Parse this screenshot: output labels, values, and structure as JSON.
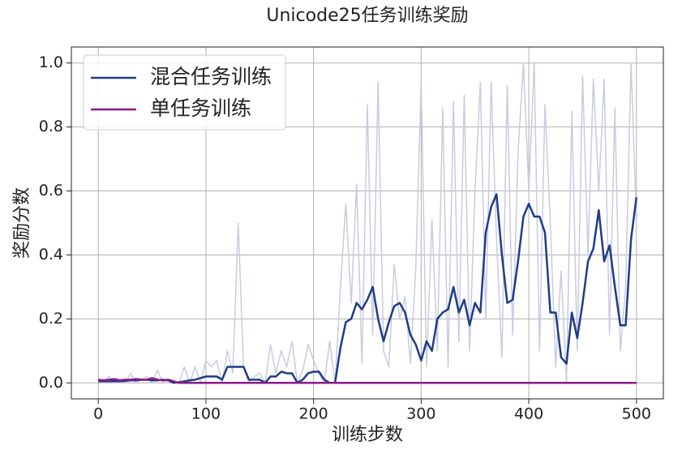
{
  "chart_data": {
    "type": "line",
    "title": "Unicode25任务训练奖励",
    "x_label": "训练步数",
    "y_label": "奖励分数",
    "xlim": [
      -25,
      525
    ],
    "xticks": [
      0,
      100,
      200,
      300,
      400,
      500
    ],
    "ylim": [
      -0.05,
      1.05
    ],
    "yticks": [
      {
        "value": 0,
        "label": "0.0"
      },
      0.2,
      0.4,
      0.6,
      0.8,
      {
        "value": 1,
        "label": "1.0"
      }
    ],
    "grid": true,
    "legend": "upper left",
    "x": [
      0,
      5,
      10,
      15,
      20,
      25,
      30,
      35,
      40,
      45,
      50,
      55,
      60,
      65,
      70,
      75,
      80,
      85,
      90,
      95,
      100,
      105,
      110,
      115,
      120,
      125,
      130,
      135,
      140,
      145,
      150,
      155,
      160,
      165,
      170,
      175,
      180,
      185,
      190,
      195,
      200,
      205,
      210,
      215,
      220,
      225,
      230,
      235,
      240,
      245,
      250,
      255,
      260,
      265,
      270,
      275,
      280,
      285,
      290,
      295,
      300,
      305,
      310,
      315,
      320,
      325,
      330,
      335,
      340,
      345,
      350,
      355,
      360,
      365,
      370,
      375,
      380,
      385,
      390,
      395,
      400,
      405,
      410,
      415,
      420,
      425,
      430,
      435,
      440,
      445,
      450,
      455,
      460,
      465,
      470,
      475,
      480,
      485,
      490,
      495,
      500
    ],
    "series": [
      {
        "color": "#c6cce0",
        "width": 1.5,
        "values": [
          0.005,
          0,
          0.02,
          0,
          0.01,
          0,
          0.03,
          0,
          0.01,
          0.02,
          0,
          0.04,
          0,
          0.01,
          0,
          0,
          0.05,
          0,
          0.05,
          0,
          0.07,
          0.05,
          0.07,
          0,
          0.1,
          0.03,
          0.5,
          0.05,
          0,
          0.02,
          0.03,
          0,
          0.12,
          0.03,
          0.1,
          0.05,
          0.13,
          0,
          0.04,
          0.12,
          0.07,
          0.03,
          0,
          0.13,
          0,
          0.3,
          0.56,
          0.25,
          0.62,
          0.06,
          0.87,
          0.15,
          0.94,
          0.1,
          0.05,
          0.37,
          0.2,
          0.27,
          0.06,
          0.36,
          0.94,
          0.05,
          0.51,
          0.1,
          0.86,
          0.05,
          0.88,
          0.13,
          0.9,
          0.1,
          0.6,
          0.94,
          0.2,
          0.94,
          0.45,
          0.08,
          0.93,
          0.15,
          0.72,
          1.0,
          0.6,
          1.0,
          0.1,
          0.87,
          0.5,
          0.05,
          0.35,
          0,
          0.85,
          0.1,
          0.96,
          0.4,
          0.95,
          0.6,
          0.95,
          0.15,
          0.86,
          0.1,
          0.3,
          1.0,
          0.5
        ]
      },
      {
        "name": "混合任务训练",
        "color": "#1f3c88",
        "width": 2.5,
        "values": [
          0.005,
          0.005,
          0.005,
          0.005,
          0.005,
          0.006,
          0.008,
          0.008,
          0.01,
          0.01,
          0.008,
          0.008,
          0.01,
          0.008,
          0,
          0.002,
          0.005,
          0.008,
          0.01,
          0.015,
          0.02,
          0.02,
          0.02,
          0.01,
          0.05,
          0.05,
          0.05,
          0.05,
          0.01,
          0.01,
          0.01,
          0,
          0.02,
          0.02,
          0.035,
          0.03,
          0.03,
          0,
          0.01,
          0.03,
          0.035,
          0.035,
          0.01,
          0,
          0,
          0.11,
          0.19,
          0.2,
          0.25,
          0.23,
          0.26,
          0.3,
          0.2,
          0.13,
          0.19,
          0.24,
          0.25,
          0.22,
          0.15,
          0.12,
          0.07,
          0.13,
          0.1,
          0.2,
          0.22,
          0.23,
          0.3,
          0.22,
          0.26,
          0.18,
          0.25,
          0.22,
          0.47,
          0.55,
          0.59,
          0.4,
          0.25,
          0.26,
          0.38,
          0.52,
          0.56,
          0.52,
          0.52,
          0.47,
          0.22,
          0.22,
          0.08,
          0.06,
          0.22,
          0.14,
          0.25,
          0.38,
          0.42,
          0.54,
          0.38,
          0.43,
          0.3,
          0.18,
          0.18,
          0.45,
          0.58
        ]
      },
      {
        "name": "单任务训练",
        "color": "#8b1a8b",
        "width": 2.5,
        "values": [
          0.01,
          0.008,
          0.01,
          0.012,
          0.008,
          0.01,
          0.01,
          0.012,
          0.01,
          0.01,
          0.015,
          0.01,
          0.008,
          0.01,
          0.005,
          0,
          0,
          0,
          0,
          0,
          0,
          0,
          0,
          0,
          0,
          0,
          0,
          0,
          0,
          0,
          0,
          0,
          0,
          0,
          0,
          0,
          0,
          0,
          0,
          0,
          0,
          0,
          0,
          0,
          0,
          0,
          0,
          0,
          0,
          0,
          0,
          0,
          0,
          0,
          0,
          0,
          0,
          0,
          0,
          0,
          0,
          0,
          0,
          0,
          0,
          0,
          0,
          0,
          0,
          0,
          0,
          0,
          0,
          0,
          0,
          0,
          0,
          0,
          0,
          0,
          0,
          0,
          0,
          0,
          0,
          0,
          0,
          0,
          0,
          0,
          0,
          0,
          0,
          0,
          0,
          0,
          0,
          0,
          0,
          0,
          0
        ]
      }
    ]
  }
}
